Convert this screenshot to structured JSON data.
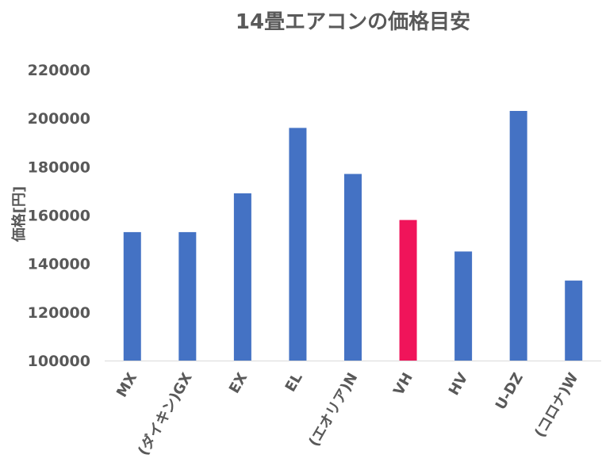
{
  "chart_data": {
    "type": "bar",
    "title": "14畳エアコンの価格目安",
    "xlabel": "",
    "ylabel": "価格[円]",
    "ylim": [
      100000,
      220000
    ],
    "yticks": [
      100000,
      120000,
      140000,
      160000,
      180000,
      200000,
      220000
    ],
    "tick_labels": [
      "100000",
      "120000",
      "140000",
      "160000",
      "180000",
      "200000",
      "220000"
    ],
    "grid": false,
    "categories": [
      "MX",
      "(ダイキン)GX",
      "EX",
      "EL",
      "(エオリア)N",
      "VH",
      "HV",
      "U-DZ",
      "(コロナ)W"
    ],
    "values": [
      153000,
      153000,
      169000,
      196000,
      177000,
      158000,
      145000,
      203000,
      133000
    ],
    "colors": {
      "default": "#4472C4",
      "highlight": "#F0145A",
      "text": "#595959",
      "axis": "#D9D9D9"
    },
    "highlight_index": 5
  }
}
